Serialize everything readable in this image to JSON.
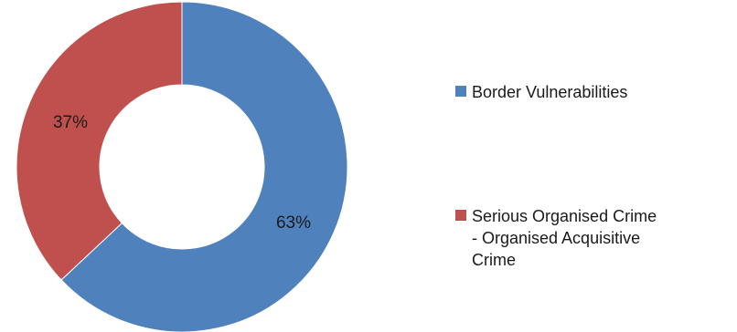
{
  "chart_data": {
    "type": "pie",
    "variant": "donut",
    "title": "",
    "legend_position": "right",
    "slices": [
      {
        "label": "Border Vulnerabilities",
        "value": 63,
        "display": "63%",
        "color": "#4f81bd"
      },
      {
        "label": "Serious Organised Crime\n- Organised Acquisitive\nCrime",
        "value": 37,
        "display": "37%",
        "color": "#c0504d"
      }
    ]
  }
}
